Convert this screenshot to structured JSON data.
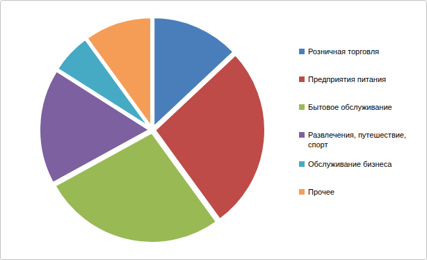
{
  "chart_data": {
    "type": "pie",
    "categories": [
      "Розничная торговля",
      "Предприятия питания",
      "Бытовое обслуживание",
      "Развлечения, путешествие, спорт",
      "Обслуживание бизнеса",
      "Прочее"
    ],
    "values": [
      13,
      27,
      27,
      17,
      6,
      10
    ],
    "colors": [
      "#4a7ebb",
      "#be4b48",
      "#98b954",
      "#7d60a0",
      "#46aac5",
      "#f59d56"
    ],
    "legend": "right"
  }
}
